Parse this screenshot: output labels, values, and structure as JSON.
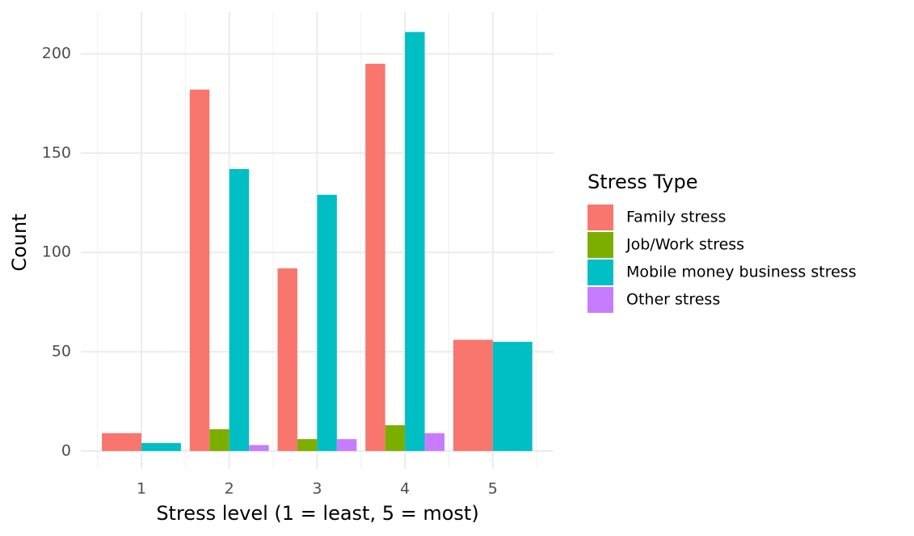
{
  "chart_data": {
    "type": "bar",
    "x_label": "Stress level (1 = least, 5 = most)",
    "y_label": "Count",
    "legend_title": "Stress Type",
    "legend_position": "right",
    "categories": [
      "1",
      "2",
      "3",
      "4",
      "5"
    ],
    "series": [
      {
        "name": "Family stress",
        "color": "#F8766D",
        "values": [
          9,
          182,
          92,
          195,
          56
        ]
      },
      {
        "name": "Job/Work stress",
        "color": "#7CAE00",
        "values": [
          null,
          11,
          6,
          13,
          null
        ]
      },
      {
        "name": "Mobile money business stress",
        "color": "#00BFC4",
        "values": [
          4,
          142,
          129,
          211,
          55
        ]
      },
      {
        "name": "Other stress",
        "color": "#C77CFF",
        "values": [
          null,
          3,
          6,
          9,
          null
        ]
      }
    ],
    "ylim": [
      -9,
      221
    ],
    "yticks": [
      0,
      50,
      100,
      150,
      200
    ],
    "grid": true
  }
}
